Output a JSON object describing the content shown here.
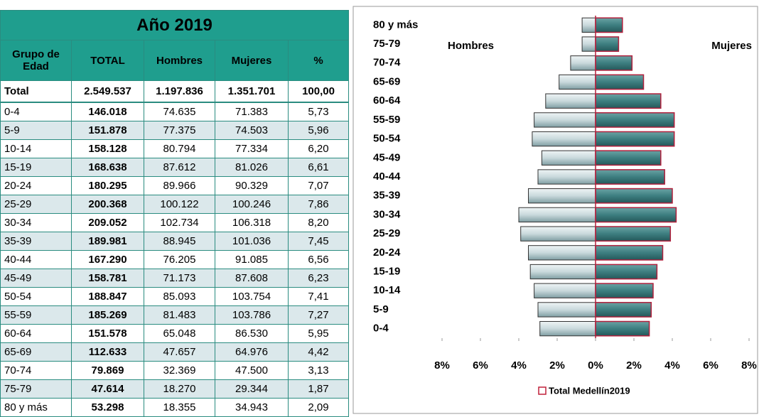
{
  "table": {
    "title": "Año 2019",
    "header": [
      "Grupo de Edad",
      "TOTAL",
      "Hombres",
      "Mujeres",
      "%"
    ],
    "total_row": [
      "Total",
      "2.549.537",
      "1.197.836",
      "1.351.701",
      "100,00"
    ],
    "rows": [
      [
        "0-4",
        "146.018",
        "74.635",
        "71.383",
        "5,73"
      ],
      [
        "5-9",
        "151.878",
        "77.375",
        "74.503",
        "5,96"
      ],
      [
        "10-14",
        "158.128",
        "80.794",
        "77.334",
        "6,20"
      ],
      [
        "15-19",
        "168.638",
        "87.612",
        "81.026",
        "6,61"
      ],
      [
        "20-24",
        "180.295",
        "89.966",
        "90.329",
        "7,07"
      ],
      [
        "25-29",
        "200.368",
        "100.122",
        "100.246",
        "7,86"
      ],
      [
        "30-34",
        "209.052",
        "102.734",
        "106.318",
        "8,20"
      ],
      [
        "35-39",
        "189.981",
        "88.945",
        "101.036",
        "7,45"
      ],
      [
        "40-44",
        "167.290",
        "76.205",
        "91.085",
        "6,56"
      ],
      [
        "45-49",
        "158.781",
        "71.173",
        "87.608",
        "6,23"
      ],
      [
        "50-54",
        "188.847",
        "85.093",
        "103.754",
        "7,41"
      ],
      [
        "55-59",
        "185.269",
        "81.483",
        "103.786",
        "7,27"
      ],
      [
        "60-64",
        "151.578",
        "65.048",
        "86.530",
        "5,95"
      ],
      [
        "65-69",
        "112.633",
        "47.657",
        "64.976",
        "4,42"
      ],
      [
        "70-74",
        "79.869",
        "32.369",
        "47.500",
        "3,13"
      ],
      [
        "75-79",
        "47.614",
        "18.270",
        "29.344",
        "1,87"
      ],
      [
        "80 y más",
        "53.298",
        "18.355",
        "34.943",
        "2,09"
      ]
    ]
  },
  "chart_data": {
    "type": "pyramid",
    "legend_label": "Total Medellín2019",
    "categories": [
      "0-4",
      "5-9",
      "10-14",
      "15-19",
      "20-24",
      "25-29",
      "30-34",
      "35-39",
      "40-44",
      "45-49",
      "50-54",
      "55-59",
      "60-64",
      "65-69",
      "70-74",
      "75-79",
      "80 y más"
    ],
    "series": [
      {
        "name": "Hombres",
        "color": "#c9d9dc",
        "values": [
          -2.9,
          -3.0,
          -3.2,
          -3.4,
          -3.5,
          -3.9,
          -4.0,
          -3.5,
          -3.0,
          -2.8,
          -3.3,
          -3.2,
          -2.6,
          -1.9,
          -1.3,
          -0.7,
          -0.7
        ]
      },
      {
        "name": "Mujeres",
        "color": "#3d7e80",
        "values": [
          2.8,
          2.9,
          3.0,
          3.2,
          3.5,
          3.9,
          4.2,
          4.0,
          3.6,
          3.4,
          4.1,
          4.1,
          3.4,
          2.5,
          1.9,
          1.2,
          1.4
        ]
      }
    ],
    "xlim": [
      -8,
      8
    ],
    "xticks": [
      {
        "value": -8,
        "label": "8%"
      },
      {
        "value": -6,
        "label": "6%"
      },
      {
        "value": -4,
        "label": "4%"
      },
      {
        "value": -2,
        "label": "2%"
      },
      {
        "value": 0,
        "label": "0%"
      },
      {
        "value": 2,
        "label": "2%"
      },
      {
        "value": 4,
        "label": "4%"
      },
      {
        "value": 6,
        "label": "6%"
      },
      {
        "value": 8,
        "label": "8%"
      }
    ]
  }
}
